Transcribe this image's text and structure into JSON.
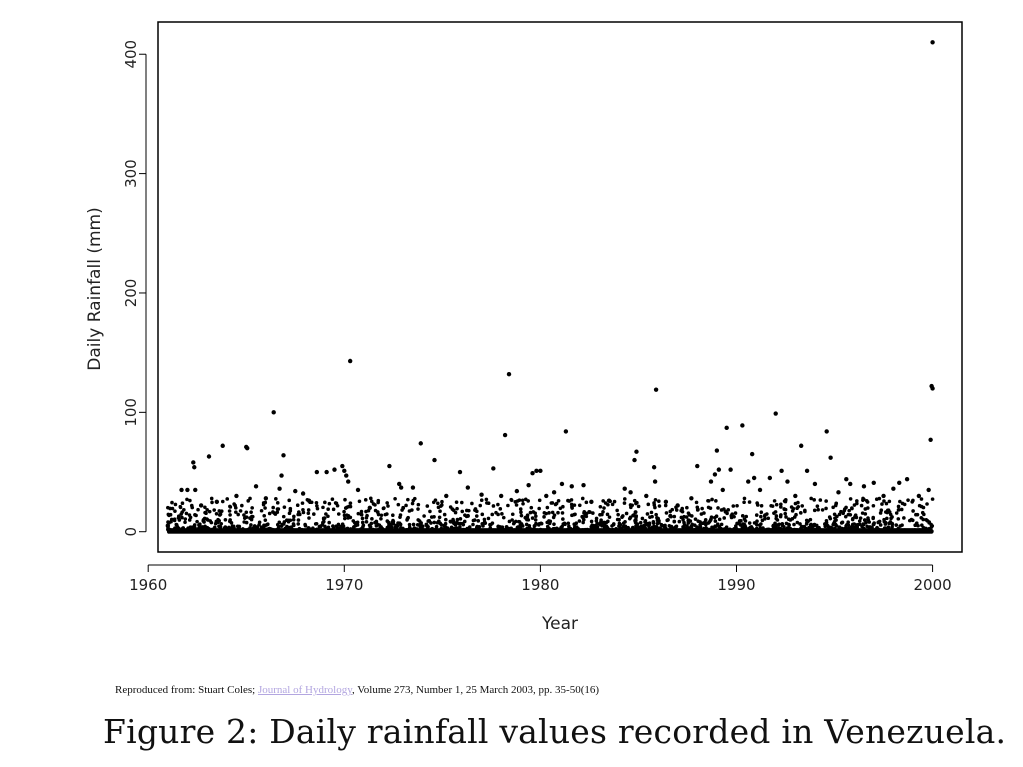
{
  "chart_data": {
    "type": "scatter",
    "xlabel": "Year",
    "ylabel": "Daily Rainfall (mm)",
    "xlim": [
      1960.5,
      2001.5
    ],
    "ylim": [
      -17,
      427
    ],
    "xticks": [
      "1960",
      "1970",
      "1980",
      "1990",
      "2000"
    ],
    "yticks": [
      "0",
      "100",
      "200",
      "300",
      "400"
    ],
    "grid": false,
    "baseline_note": "dense cloud of near-zero daily values from 1961 to 2000",
    "points": [
      {
        "x": 1961.0,
        "y": 5
      },
      {
        "x": 1961.7,
        "y": 35
      },
      {
        "x": 1962.0,
        "y": 35
      },
      {
        "x": 1962.3,
        "y": 58
      },
      {
        "x": 1962.35,
        "y": 54
      },
      {
        "x": 1962.4,
        "y": 35
      },
      {
        "x": 1962.7,
        "y": 22
      },
      {
        "x": 1963.1,
        "y": 63
      },
      {
        "x": 1963.5,
        "y": 25
      },
      {
        "x": 1963.8,
        "y": 72
      },
      {
        "x": 1964.5,
        "y": 30
      },
      {
        "x": 1965.0,
        "y": 71
      },
      {
        "x": 1965.05,
        "y": 70
      },
      {
        "x": 1965.5,
        "y": 38
      },
      {
        "x": 1966.0,
        "y": 28
      },
      {
        "x": 1966.4,
        "y": 100
      },
      {
        "x": 1966.9,
        "y": 64
      },
      {
        "x": 1966.8,
        "y": 47
      },
      {
        "x": 1966.7,
        "y": 36
      },
      {
        "x": 1967.5,
        "y": 34
      },
      {
        "x": 1967.9,
        "y": 32
      },
      {
        "x": 1968.2,
        "y": 26
      },
      {
        "x": 1968.6,
        "y": 50
      },
      {
        "x": 1969.1,
        "y": 50
      },
      {
        "x": 1969.5,
        "y": 52
      },
      {
        "x": 1969.9,
        "y": 55
      },
      {
        "x": 1970.0,
        "y": 51
      },
      {
        "x": 1970.1,
        "y": 47
      },
      {
        "x": 1970.2,
        "y": 42
      },
      {
        "x": 1970.3,
        "y": 143
      },
      {
        "x": 1970.7,
        "y": 35
      },
      {
        "x": 1971.3,
        "y": 20
      },
      {
        "x": 1972.3,
        "y": 55
      },
      {
        "x": 1972.8,
        "y": 40
      },
      {
        "x": 1972.9,
        "y": 37
      },
      {
        "x": 1973.5,
        "y": 37
      },
      {
        "x": 1973.9,
        "y": 74
      },
      {
        "x": 1974.6,
        "y": 60
      },
      {
        "x": 1975.2,
        "y": 30
      },
      {
        "x": 1975.9,
        "y": 50
      },
      {
        "x": 1976.3,
        "y": 37
      },
      {
        "x": 1977.0,
        "y": 31
      },
      {
        "x": 1977.6,
        "y": 53
      },
      {
        "x": 1978.0,
        "y": 30
      },
      {
        "x": 1978.2,
        "y": 81
      },
      {
        "x": 1978.4,
        "y": 132
      },
      {
        "x": 1978.8,
        "y": 34
      },
      {
        "x": 1979.4,
        "y": 39
      },
      {
        "x": 1979.6,
        "y": 49
      },
      {
        "x": 1979.8,
        "y": 51
      },
      {
        "x": 1980.0,
        "y": 51
      },
      {
        "x": 1980.3,
        "y": 30
      },
      {
        "x": 1980.7,
        "y": 33
      },
      {
        "x": 1981.1,
        "y": 40
      },
      {
        "x": 1981.3,
        "y": 84
      },
      {
        "x": 1981.6,
        "y": 38
      },
      {
        "x": 1982.2,
        "y": 39
      },
      {
        "x": 1982.6,
        "y": 25
      },
      {
        "x": 1983.5,
        "y": 26
      },
      {
        "x": 1984.3,
        "y": 36
      },
      {
        "x": 1984.6,
        "y": 33
      },
      {
        "x": 1984.9,
        "y": 67
      },
      {
        "x": 1984.8,
        "y": 60
      },
      {
        "x": 1985.4,
        "y": 30
      },
      {
        "x": 1985.8,
        "y": 54
      },
      {
        "x": 1985.85,
        "y": 42
      },
      {
        "x": 1985.9,
        "y": 119
      },
      {
        "x": 1986.4,
        "y": 25
      },
      {
        "x": 1987.0,
        "y": 22
      },
      {
        "x": 1987.7,
        "y": 28
      },
      {
        "x": 1988.0,
        "y": 55
      },
      {
        "x": 1988.7,
        "y": 42
      },
      {
        "x": 1988.9,
        "y": 48
      },
      {
        "x": 1989.0,
        "y": 68
      },
      {
        "x": 1989.1,
        "y": 52
      },
      {
        "x": 1989.3,
        "y": 35
      },
      {
        "x": 1989.5,
        "y": 87
      },
      {
        "x": 1989.7,
        "y": 52
      },
      {
        "x": 1990.3,
        "y": 89
      },
      {
        "x": 1990.6,
        "y": 42
      },
      {
        "x": 1990.8,
        "y": 65
      },
      {
        "x": 1990.9,
        "y": 45
      },
      {
        "x": 1991.2,
        "y": 35
      },
      {
        "x": 1991.7,
        "y": 45
      },
      {
        "x": 1992.0,
        "y": 99
      },
      {
        "x": 1992.3,
        "y": 51
      },
      {
        "x": 1992.6,
        "y": 42
      },
      {
        "x": 1993.0,
        "y": 30
      },
      {
        "x": 1993.3,
        "y": 72
      },
      {
        "x": 1993.6,
        "y": 51
      },
      {
        "x": 1994.0,
        "y": 40
      },
      {
        "x": 1994.6,
        "y": 84
      },
      {
        "x": 1994.8,
        "y": 62
      },
      {
        "x": 1995.2,
        "y": 33
      },
      {
        "x": 1995.6,
        "y": 44
      },
      {
        "x": 1995.8,
        "y": 40
      },
      {
        "x": 1996.5,
        "y": 38
      },
      {
        "x": 1997.0,
        "y": 41
      },
      {
        "x": 1997.5,
        "y": 30
      },
      {
        "x": 1998.0,
        "y": 36
      },
      {
        "x": 1998.3,
        "y": 41
      },
      {
        "x": 1998.7,
        "y": 44
      },
      {
        "x": 1999.3,
        "y": 30
      },
      {
        "x": 1999.8,
        "y": 35
      },
      {
        "x": 1999.9,
        "y": 77
      },
      {
        "x": 1999.95,
        "y": 122
      },
      {
        "x": 2000.0,
        "y": 120
      },
      {
        "x": 2000.0,
        "y": 410
      }
    ]
  },
  "source": {
    "prefix": "Reproduced from: Stuart Coles; ",
    "link_text": "Journal of Hydrology",
    "suffix": ", Volume 273, Number 1, 25 March 2003, pp. 35-50(16)"
  },
  "caption": "Figure 2: Daily rainfall values recorded in Venezuela."
}
